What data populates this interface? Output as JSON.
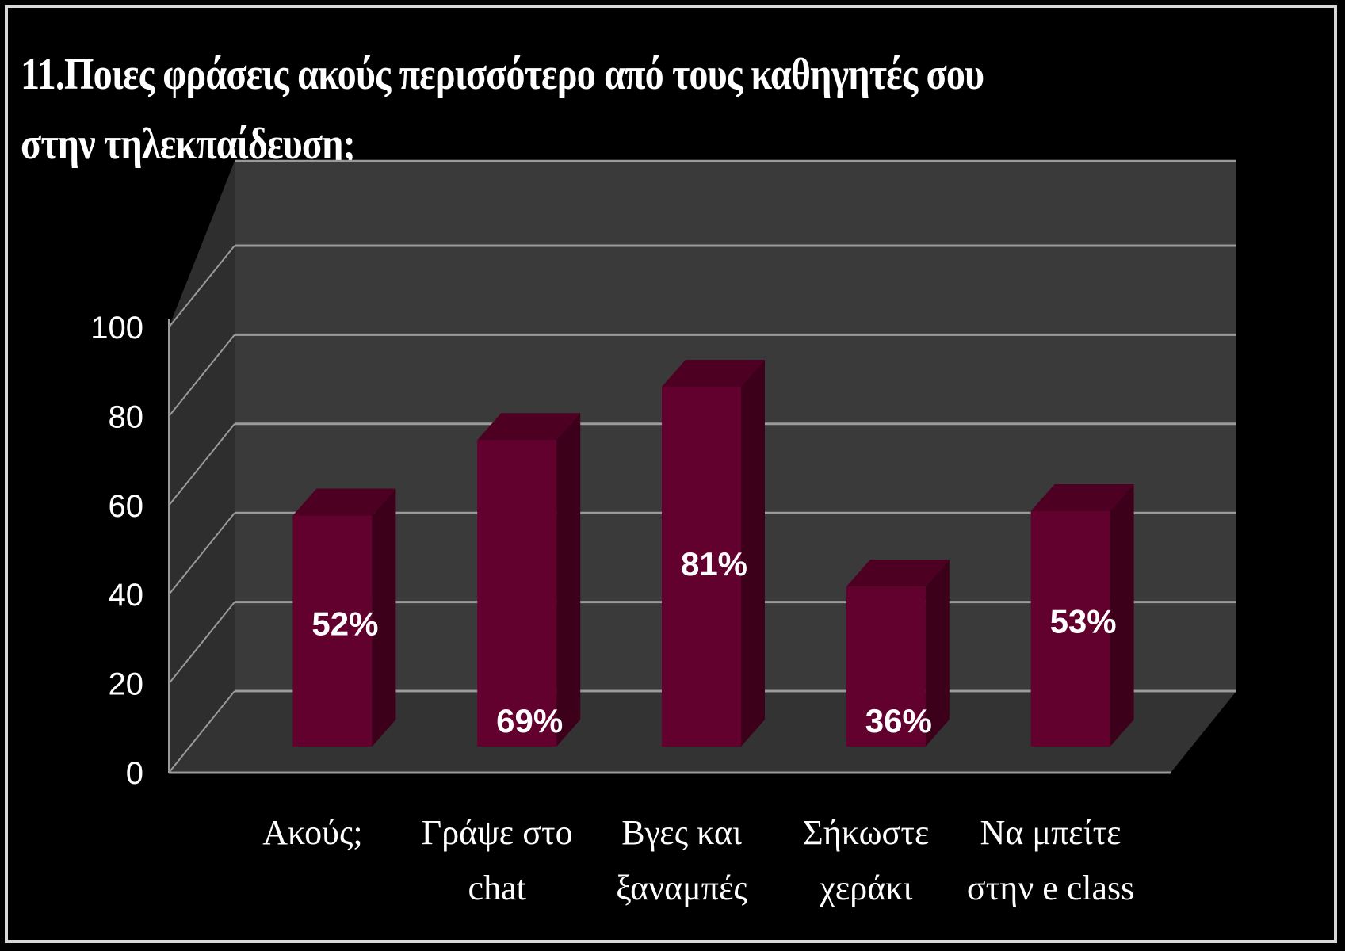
{
  "title": {
    "line1": "11.Ποιες φράσεις ακούς περισσότερο από τους καθηγητές σου",
    "line2": "στην τηλεκπαίδευση;"
  },
  "colors": {
    "background": "#000000",
    "bar_front": "#62002e",
    "bar_side": "#3d001b",
    "bar_top": "#4d0022",
    "wall": "#3a3a3a",
    "floor": "#333333",
    "gridline": "#9a9a9a"
  },
  "chart_data": {
    "type": "bar",
    "style": "3d-column",
    "categories": [
      [
        "Ακούς;"
      ],
      [
        "Γράψε στο",
        "chat"
      ],
      [
        "Βγες και",
        "ξαναμπές"
      ],
      [
        "Σήκωστε",
        "χεράκι"
      ],
      [
        "Να μπείτε",
        "στην e class"
      ]
    ],
    "values": [
      52,
      69,
      81,
      36,
      53
    ],
    "data_labels": [
      "52%",
      "69%",
      "81%",
      "36%",
      "53%"
    ],
    "ylim": [
      0,
      100
    ],
    "yticks": [
      "0",
      "20",
      "40",
      "60",
      "80",
      "100"
    ],
    "grid": true,
    "legend": "none"
  }
}
